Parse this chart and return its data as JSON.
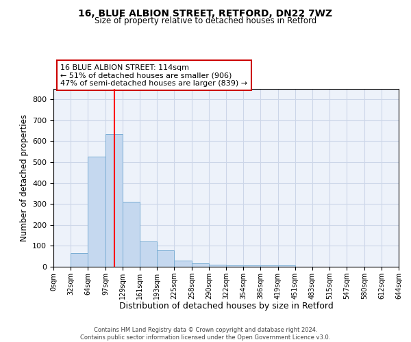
{
  "title1": "16, BLUE ALBION STREET, RETFORD, DN22 7WZ",
  "title2": "Size of property relative to detached houses in Retford",
  "xlabel": "Distribution of detached houses by size in Retford",
  "ylabel": "Number of detached properties",
  "bin_edges": [
    0,
    32,
    64,
    97,
    129,
    161,
    193,
    225,
    258,
    290,
    322,
    354,
    386,
    419,
    451,
    483,
    515,
    547,
    580,
    612,
    644
  ],
  "bar_heights": [
    0,
    65,
    525,
    635,
    310,
    120,
    78,
    30,
    15,
    10,
    8,
    6,
    5,
    5,
    0,
    0,
    0,
    0,
    0,
    0
  ],
  "bar_color": "#c5d8ef",
  "bar_edge_color": "#7aadd4",
  "red_line_x": 114,
  "annotation_text": "16 BLUE ALBION STREET: 114sqm\n← 51% of detached houses are smaller (906)\n47% of semi-detached houses are larger (839) →",
  "annotation_box_color": "#ffffff",
  "annotation_box_edge": "#cc0000",
  "annotation_text_color": "#000000",
  "ylim": [
    0,
    850
  ],
  "yticks": [
    0,
    100,
    200,
    300,
    400,
    500,
    600,
    700,
    800
  ],
  "footnote": "Contains HM Land Registry data © Crown copyright and database right 2024.\nContains public sector information licensed under the Open Government Licence v3.0.",
  "grid_color": "#ccd6e8",
  "background_color": "#edf2fa"
}
